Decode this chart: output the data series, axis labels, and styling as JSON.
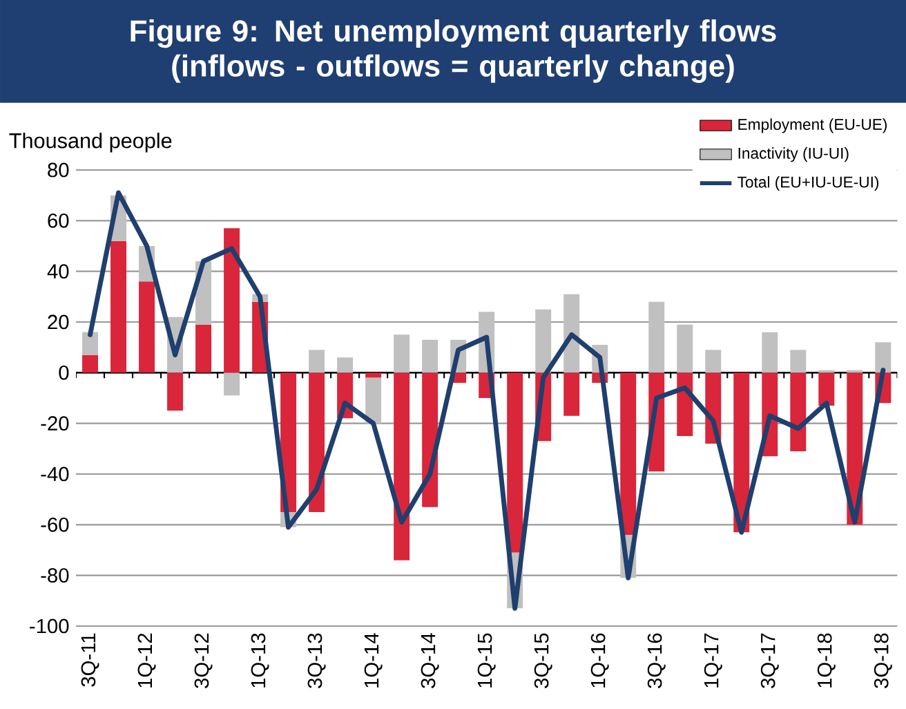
{
  "chart_data": {
    "type": "bar",
    "title": "Figure 9: Net unemployment quarterly flows (inflows - outflows = quarterly change)",
    "ylabel": "Thousand people",
    "categories": [
      "3Q-11",
      null,
      "1Q-12",
      null,
      "3Q-12",
      null,
      "1Q-13",
      null,
      "3Q-13",
      null,
      "1Q-14",
      null,
      "3Q-14",
      null,
      "1Q-15",
      null,
      "3Q-15",
      null,
      "1Q-16",
      null,
      "3Q-16",
      null,
      "1Q-17",
      null,
      "3Q-17",
      null,
      "1Q-18",
      null,
      "3Q-18"
    ],
    "stacked": true,
    "series": [
      {
        "name": "Employment (EU-UE)",
        "color": "#d9263a",
        "values": [
          7,
          52,
          36,
          -15,
          19,
          57,
          28,
          -55,
          -55,
          -18,
          -2,
          -74,
          -53,
          -4,
          -10,
          -71,
          -27,
          -17,
          -4,
          -64,
          -39,
          -25,
          -28,
          -63,
          -33,
          -31,
          -13,
          -60,
          -12
        ]
      },
      {
        "name": "Inactivity (IU-UI)",
        "color": "#c0c0c0",
        "values": [
          9,
          18,
          14,
          22,
          25,
          -9,
          3,
          -6,
          9,
          6,
          -18,
          15,
          13,
          13,
          24,
          -22,
          25,
          31,
          11,
          -17,
          28,
          19,
          9,
          0,
          16,
          9,
          1,
          1,
          12
        ]
      },
      {
        "name": "Total (EU+IU-UE-UI)",
        "type": "line",
        "color": "#1f3f6e",
        "values": [
          15,
          71,
          50,
          7,
          44,
          49,
          30,
          -61,
          -46,
          -12,
          -20,
          -59,
          -40,
          9,
          14,
          -93,
          -2,
          15,
          6,
          -81,
          -10,
          -6,
          -19,
          -63,
          -17,
          -22,
          -12,
          -59,
          1
        ]
      }
    ],
    "ylim": [
      -100,
      80
    ],
    "yticks": [
      -100,
      -80,
      -60,
      -40,
      -20,
      0,
      20,
      40,
      60,
      80
    ],
    "grid": "y",
    "legend": "top right",
    "marker": "none",
    "line_style": "solid"
  }
}
